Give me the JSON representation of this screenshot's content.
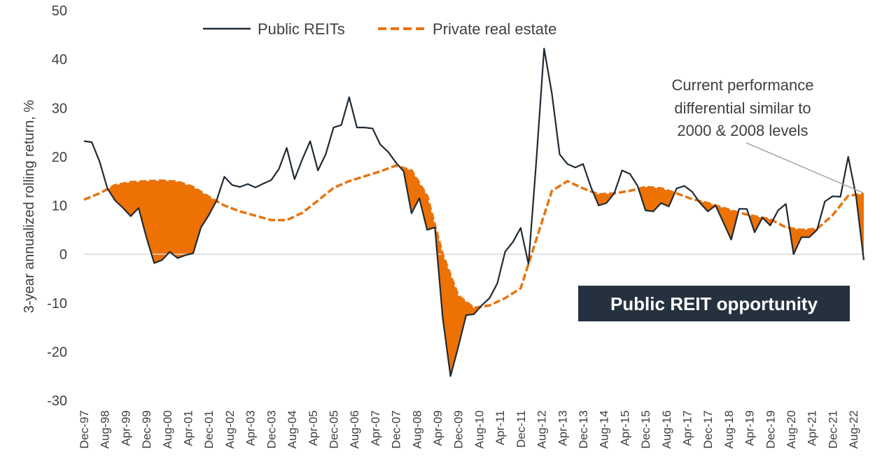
{
  "chart_data": {
    "type": "line",
    "ylabel": "3-year annualized rolling return, %",
    "ylim": [
      -30,
      50
    ],
    "yticks": [
      -30,
      -20,
      -10,
      0,
      10,
      20,
      30,
      40,
      50
    ],
    "x_tick_labels": [
      "Dec-97",
      "Aug-98",
      "Apr-99",
      "Dec-99",
      "Aug-00",
      "Apr-01",
      "Dec-01",
      "Aug-02",
      "Apr-03",
      "Dec-03",
      "Aug-04",
      "Apr-05",
      "Dec-05",
      "Aug-06",
      "Apr-07",
      "Dec-07",
      "Aug-08",
      "Apr-09",
      "Dec-09",
      "Aug-10",
      "Apr-11",
      "Dec-11",
      "Aug-12",
      "Apr-13",
      "Dec-13",
      "Aug-14",
      "Apr-15",
      "Dec-15",
      "Aug-16",
      "Apr-17",
      "Dec-17",
      "Aug-18",
      "Apr-19",
      "Dec-19",
      "Aug-20",
      "Apr-21",
      "Dec-21",
      "Aug-22"
    ],
    "x_range": [
      "Dec-97",
      "Dec-22"
    ],
    "legend": {
      "placement": "top",
      "entries": [
        "Public REITs",
        "Private real estate"
      ]
    },
    "series": [
      {
        "name": "Public REITs",
        "color": "#1f2a36",
        "style": "solid",
        "points": [
          [
            "Dec-97",
            23.2
          ],
          [
            "Mar-98",
            23.0
          ],
          [
            "Jun-98",
            19.0
          ],
          [
            "Sep-98",
            13.5
          ],
          [
            "Dec-98",
            11.0
          ],
          [
            "Mar-99",
            9.5
          ],
          [
            "Jun-99",
            7.8
          ],
          [
            "Sep-99",
            9.5
          ],
          [
            "Dec-99",
            3.5
          ],
          [
            "Mar-00",
            -1.8
          ],
          [
            "Jun-00",
            -1.2
          ],
          [
            "Sep-00",
            0.5
          ],
          [
            "Dec-00",
            -0.8
          ],
          [
            "Mar-01",
            -0.2
          ],
          [
            "Jun-01",
            0.2
          ],
          [
            "Sep-01",
            5.5
          ],
          [
            "Dec-01",
            8.0
          ],
          [
            "Mar-02",
            11.0
          ],
          [
            "Jun-02",
            15.9
          ],
          [
            "Sep-02",
            14.2
          ],
          [
            "Dec-02",
            13.8
          ],
          [
            "Mar-03",
            14.4
          ],
          [
            "Jun-03",
            13.7
          ],
          [
            "Sep-03",
            14.5
          ],
          [
            "Dec-03",
            15.2
          ],
          [
            "Mar-04",
            17.5
          ],
          [
            "Jun-04",
            21.8
          ],
          [
            "Sep-04",
            15.4
          ],
          [
            "Dec-04",
            19.5
          ],
          [
            "Mar-05",
            23.2
          ],
          [
            "Jun-05",
            17.2
          ],
          [
            "Sep-05",
            20.5
          ],
          [
            "Dec-05",
            26.0
          ],
          [
            "Mar-06",
            26.5
          ],
          [
            "Jun-06",
            32.2
          ],
          [
            "Sep-06",
            26.0
          ],
          [
            "Dec-06",
            26.0
          ],
          [
            "Mar-07",
            25.8
          ],
          [
            "Jun-07",
            22.5
          ],
          [
            "Sep-07",
            21.0
          ],
          [
            "Dec-07",
            18.8
          ],
          [
            "Mar-08",
            17.0
          ],
          [
            "Jun-08",
            8.4
          ],
          [
            "Sep-08",
            11.5
          ],
          [
            "Dec-08",
            5.0
          ],
          [
            "Mar-09",
            5.5
          ],
          [
            "Jun-09",
            -13.0
          ],
          [
            "Sep-09",
            -25.0
          ],
          [
            "Dec-09",
            -19.0
          ],
          [
            "Mar-10",
            -12.5
          ],
          [
            "Jun-10",
            -12.3
          ],
          [
            "Sep-10",
            -10.5
          ],
          [
            "Dec-10",
            -9.0
          ],
          [
            "Mar-11",
            -6.0
          ],
          [
            "Jun-11",
            0.5
          ],
          [
            "Sep-11",
            2.5
          ],
          [
            "Dec-11",
            5.4
          ],
          [
            "Mar-12",
            -2.0
          ],
          [
            "Jun-12",
            19.0
          ],
          [
            "Sep-12",
            42.2
          ],
          [
            "Dec-12",
            33.0
          ],
          [
            "Mar-13",
            20.5
          ],
          [
            "Jun-13",
            18.5
          ],
          [
            "Sep-13",
            17.8
          ],
          [
            "Dec-13",
            18.5
          ],
          [
            "Mar-14",
            13.8
          ],
          [
            "Jun-14",
            10.0
          ],
          [
            "Sep-14",
            10.5
          ],
          [
            "Dec-14",
            12.5
          ],
          [
            "Mar-15",
            17.2
          ],
          [
            "Jun-15",
            16.5
          ],
          [
            "Sep-15",
            14.0
          ],
          [
            "Dec-15",
            9.0
          ],
          [
            "Mar-16",
            8.8
          ],
          [
            "Jun-16",
            10.5
          ],
          [
            "Sep-16",
            9.8
          ],
          [
            "Dec-16",
            13.5
          ],
          [
            "Mar-17",
            14.0
          ],
          [
            "Jun-17",
            12.8
          ],
          [
            "Sep-17",
            10.5
          ],
          [
            "Dec-17",
            8.8
          ],
          [
            "Mar-18",
            10.0
          ],
          [
            "Jun-18",
            6.5
          ],
          [
            "Sep-18",
            3.0
          ],
          [
            "Dec-18",
            9.3
          ],
          [
            "Mar-19",
            9.3
          ],
          [
            "Jun-19",
            4.5
          ],
          [
            "Sep-19",
            7.5
          ],
          [
            "Dec-19",
            5.9
          ],
          [
            "Mar-20",
            9.0
          ],
          [
            "Jun-20",
            10.3
          ],
          [
            "Sep-20",
            0.0
          ],
          [
            "Dec-20",
            3.5
          ],
          [
            "Mar-21",
            3.5
          ],
          [
            "Jun-21",
            5.0
          ],
          [
            "Sep-21",
            10.8
          ],
          [
            "Dec-21",
            11.9
          ],
          [
            "Mar-22",
            11.8
          ],
          [
            "Jun-22",
            20.0
          ],
          [
            "Sep-22",
            12.0
          ],
          [
            "Dec-22",
            -1.2
          ]
        ]
      },
      {
        "name": "Private real estate",
        "color": "#e8730f",
        "style": "dashed",
        "points": [
          [
            "Dec-97",
            11.2
          ],
          [
            "Jun-98",
            12.5
          ],
          [
            "Dec-98",
            14.2
          ],
          [
            "Jun-99",
            14.8
          ],
          [
            "Dec-99",
            15.0
          ],
          [
            "Jun-00",
            15.1
          ],
          [
            "Dec-00",
            14.9
          ],
          [
            "Jun-01",
            13.8
          ],
          [
            "Dec-01",
            11.8
          ],
          [
            "Jun-02",
            10.0
          ],
          [
            "Dec-02",
            8.8
          ],
          [
            "Jun-03",
            7.9
          ],
          [
            "Dec-03",
            7.0
          ],
          [
            "Jun-04",
            7.0
          ],
          [
            "Dec-04",
            8.5
          ],
          [
            "Jun-05",
            11.0
          ],
          [
            "Dec-05",
            13.6
          ],
          [
            "Jun-06",
            15.0
          ],
          [
            "Dec-06",
            16.0
          ],
          [
            "Jun-07",
            17.0
          ],
          [
            "Dec-07",
            18.2
          ],
          [
            "Jun-08",
            17.2
          ],
          [
            "Dec-08",
            12.0
          ],
          [
            "Jun-09",
            0.0
          ],
          [
            "Dec-09",
            -8.5
          ],
          [
            "Jun-10",
            -11.0
          ],
          [
            "Dec-10",
            -10.5
          ],
          [
            "Jun-11",
            -9.0
          ],
          [
            "Dec-11",
            -7.0
          ],
          [
            "Jun-12",
            3.0
          ],
          [
            "Dec-12",
            13.0
          ],
          [
            "Jun-13",
            15.0
          ],
          [
            "Dec-13",
            13.5
          ],
          [
            "Jun-14",
            12.3
          ],
          [
            "Dec-14",
            12.5
          ],
          [
            "Jun-15",
            13.0
          ],
          [
            "Dec-15",
            13.8
          ],
          [
            "Jun-16",
            13.5
          ],
          [
            "Dec-16",
            12.5
          ],
          [
            "Jun-17",
            11.3
          ],
          [
            "Dec-17",
            10.5
          ],
          [
            "Jun-18",
            9.5
          ],
          [
            "Dec-18",
            8.5
          ],
          [
            "Jun-19",
            7.8
          ],
          [
            "Dec-19",
            7.2
          ],
          [
            "Jun-20",
            5.5
          ],
          [
            "Dec-20",
            5.0
          ],
          [
            "Jun-21",
            5.2
          ],
          [
            "Dec-21",
            8.0
          ],
          [
            "Jun-22",
            12.0
          ],
          [
            "Dec-22",
            12.4
          ]
        ]
      }
    ],
    "fill": {
      "description_series": "Private real estate above Public REITs",
      "color": "#ee7103"
    },
    "annotation": {
      "lines": [
        "Current performance",
        "differential similar to",
        "2000 & 2008 levels"
      ]
    },
    "callout": {
      "label": "Public REIT opportunity",
      "background": "#26313f"
    }
  }
}
